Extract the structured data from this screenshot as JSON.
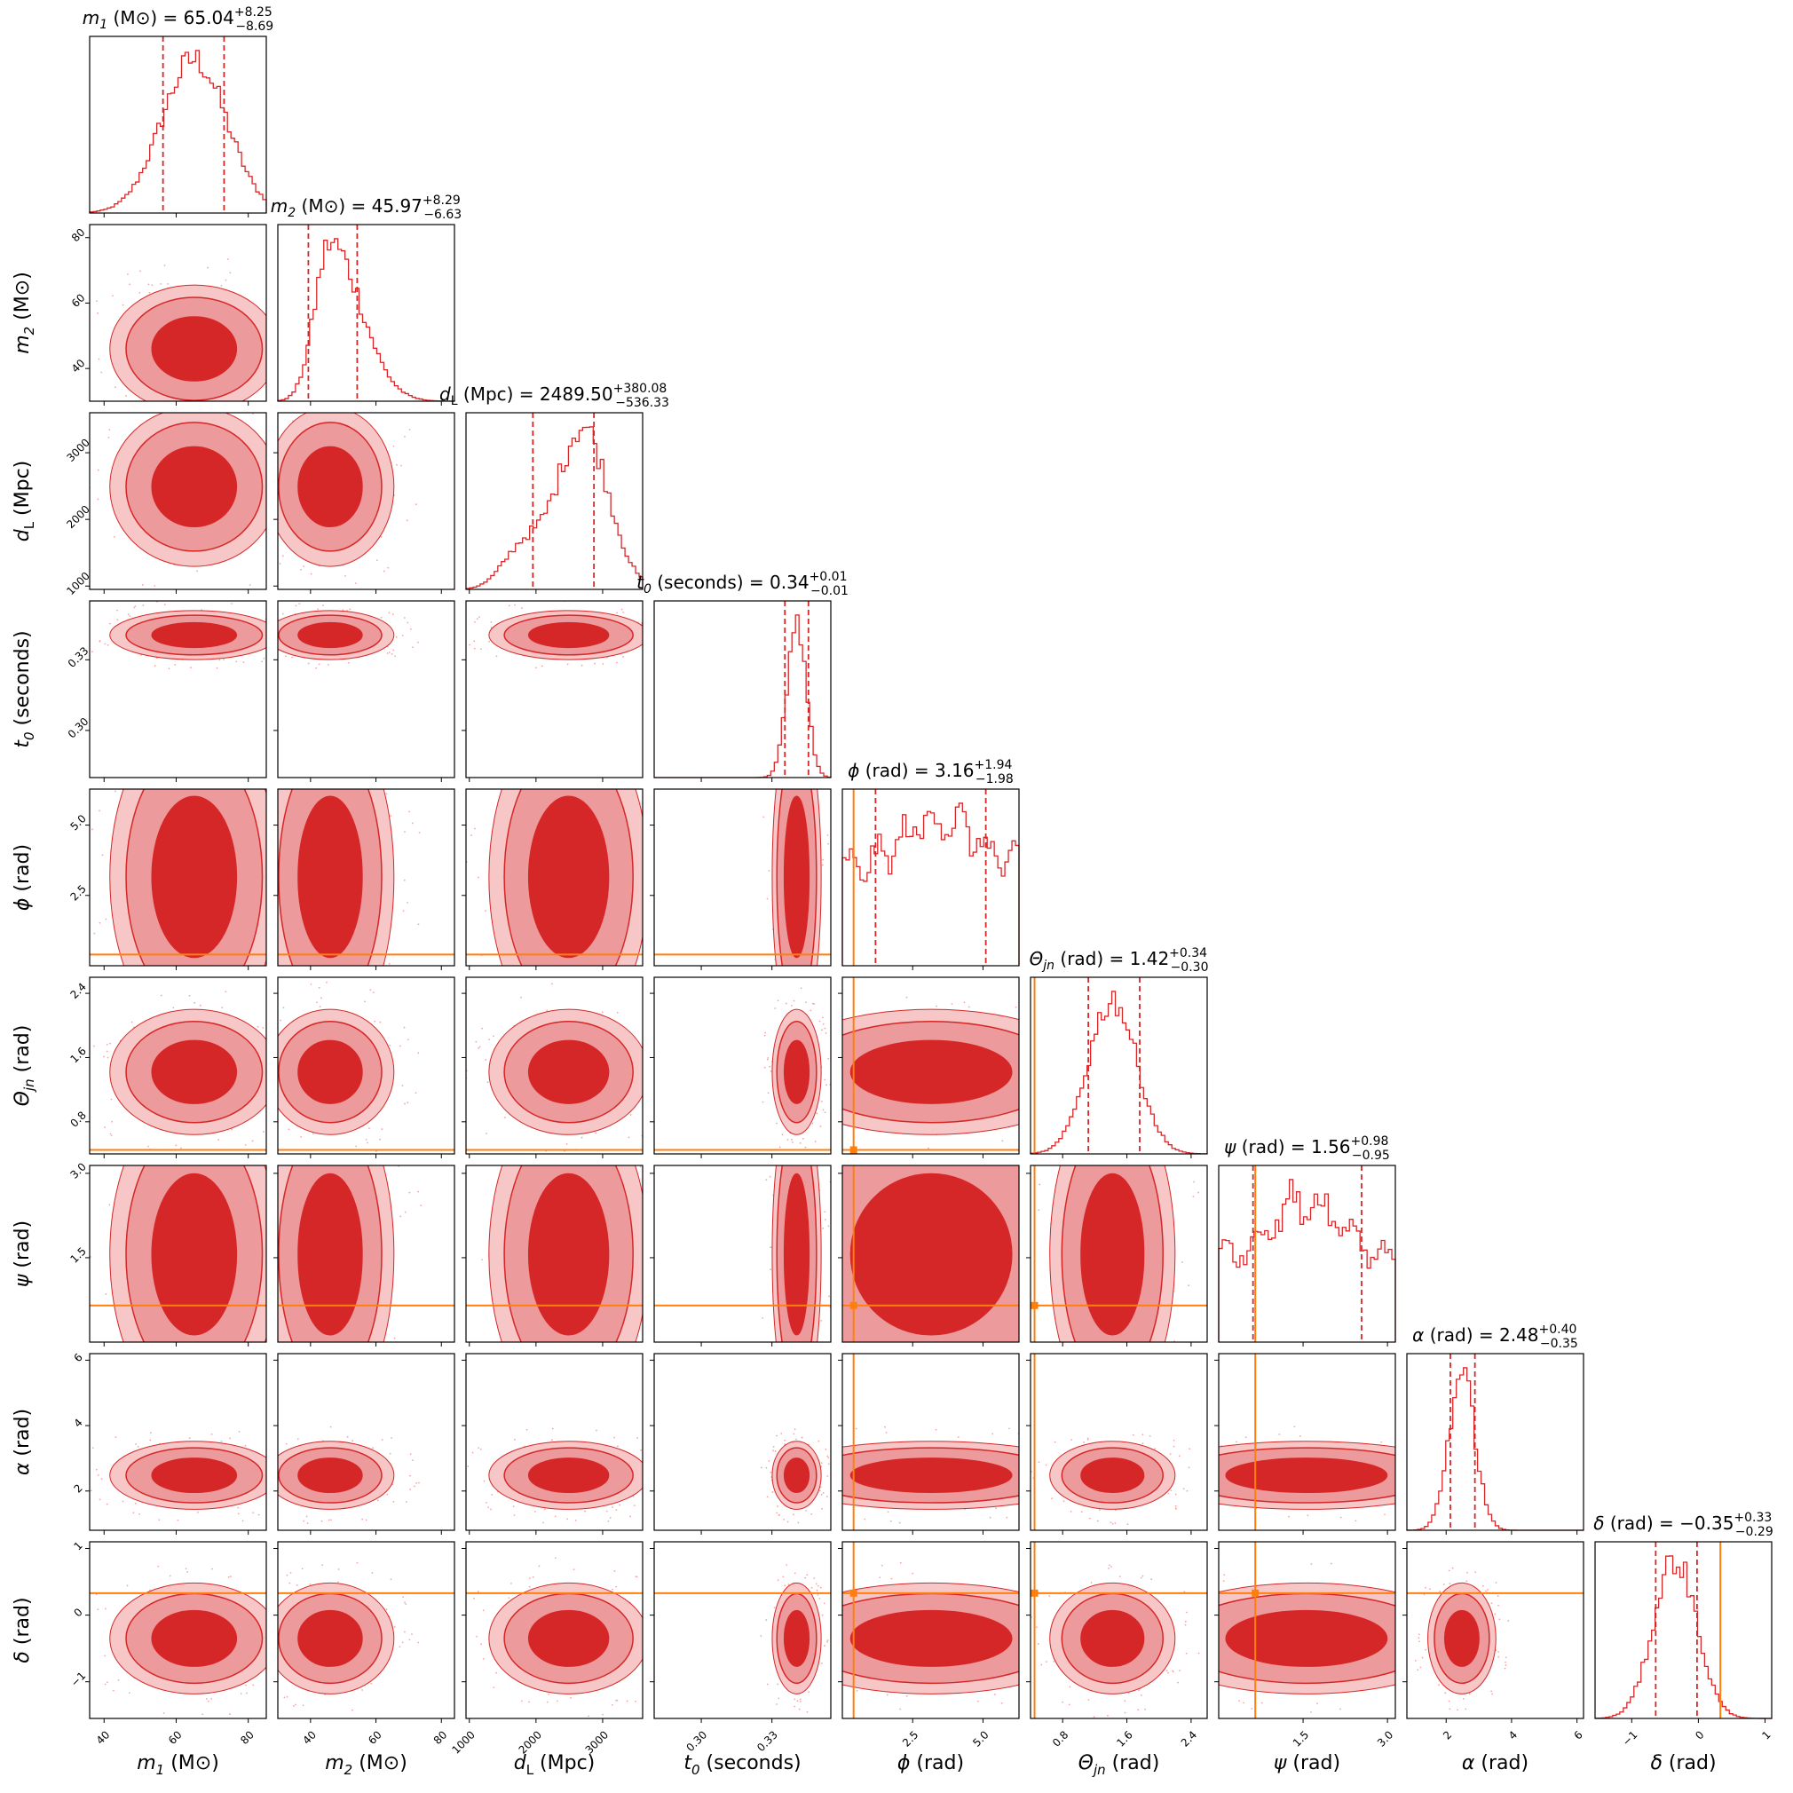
{
  "chart_data": {
    "type": "corner",
    "colors": {
      "posterior": "#d62728",
      "truth": "#ff7f0e",
      "axes": "#000000"
    },
    "params": [
      {
        "key": "m1",
        "label_html": "m<sub>1</sub> (M☉)",
        "sym": "m",
        "sub": "1",
        "unit": " (M⊙)",
        "median": "65.04",
        "plus": "+8.25",
        "minus": "−8.69",
        "range": [
          36,
          85
        ],
        "ticks": [
          40,
          60,
          80
        ],
        "mean": 65,
        "sd": 9,
        "lo": 56.35,
        "hi": 73.29,
        "truth": null
      },
      {
        "key": "m2",
        "sym": "m",
        "sub": "2",
        "unit": " (M⊙)",
        "median": "45.97",
        "plus": "+8.29",
        "minus": "−6.63",
        "range": [
          30,
          84
        ],
        "ticks": [
          40,
          60,
          80
        ],
        "mean": 46,
        "sd": 7.5,
        "lo": 39.34,
        "hi": 54.26,
        "truth": null
      },
      {
        "key": "dL",
        "sym": "d",
        "sub": "L",
        "unit": " (Mpc)",
        "median": "2489.50",
        "plus": "+380.08",
        "minus": "−536.33",
        "range": [
          950,
          3600
        ],
        "ticks": [
          1000,
          2000,
          3000
        ],
        "mean": 2490,
        "sd": 460,
        "lo": 1953.17,
        "hi": 2869.58,
        "truth": null
      },
      {
        "key": "t0",
        "sym": "t",
        "sub": "0",
        "unit": " (seconds)",
        "median": "0.34",
        "plus": "+0.01",
        "minus": "−0.01",
        "range": [
          0.28,
          0.355
        ],
        "ticks": [
          0.3,
          0.33
        ],
        "tick_labels": [
          "0.30",
          "0.33"
        ],
        "mean": 0.3405,
        "sd": 0.004,
        "lo": 0.3355,
        "hi": 0.3455,
        "truth": null
      },
      {
        "key": "phi",
        "sym": "ϕ",
        "sub": "",
        "unit": " (rad)",
        "median": "3.16",
        "plus": "+1.94",
        "minus": "−1.98",
        "range": [
          0,
          6.28
        ],
        "ticks": [
          2.5,
          5.0
        ],
        "tick_labels": [
          "2.5",
          "5.0"
        ],
        "mean": 3.16,
        "sd": 2.2,
        "lo": 1.18,
        "hi": 5.1,
        "truth": 0.4
      },
      {
        "key": "theta",
        "sym": "Θ",
        "sub": "jn",
        "unit": " (rad)",
        "median": "1.42",
        "plus": "+0.34",
        "minus": "−0.30",
        "range": [
          0.4,
          2.6
        ],
        "ticks": [
          0.8,
          1.6,
          2.4
        ],
        "tick_labels": [
          "0.8",
          "1.6",
          "2.4"
        ],
        "mean": 1.42,
        "sd": 0.3,
        "lo": 1.12,
        "hi": 1.76,
        "truth": 0.45
      },
      {
        "key": "psi",
        "sym": "ψ",
        "sub": "",
        "unit": " (rad)",
        "median": "1.56",
        "plus": "+0.98",
        "minus": "−0.95",
        "range": [
          0,
          3.14
        ],
        "ticks": [
          1.5,
          3.0
        ],
        "tick_labels": [
          "1.5",
          "3.0"
        ],
        "mean": 1.56,
        "sd": 1.1,
        "lo": 0.61,
        "hi": 2.54,
        "truth": 0.65
      },
      {
        "key": "alpha",
        "sym": "α",
        "sub": "",
        "unit": " (rad)",
        "median": "2.48",
        "plus": "+0.40",
        "minus": "−0.35",
        "range": [
          0.8,
          6.2
        ],
        "ticks": [
          2,
          4,
          6
        ],
        "mean": 2.48,
        "sd": 0.4,
        "lo": 2.13,
        "hi": 2.88,
        "truth": null
      },
      {
        "key": "delta",
        "sym": "δ",
        "sub": "",
        "unit": " (rad)",
        "median": "−0.35",
        "plus": "+0.33",
        "minus": "−0.29",
        "range": [
          -1.55,
          1.1
        ],
        "ticks": [
          -1,
          0,
          1
        ],
        "tick_labels": [
          "−1",
          "0",
          "1"
        ],
        "mean": -0.35,
        "sd": 0.32,
        "lo": -0.64,
        "hi": -0.02,
        "truth": 0.33
      }
    ]
  }
}
